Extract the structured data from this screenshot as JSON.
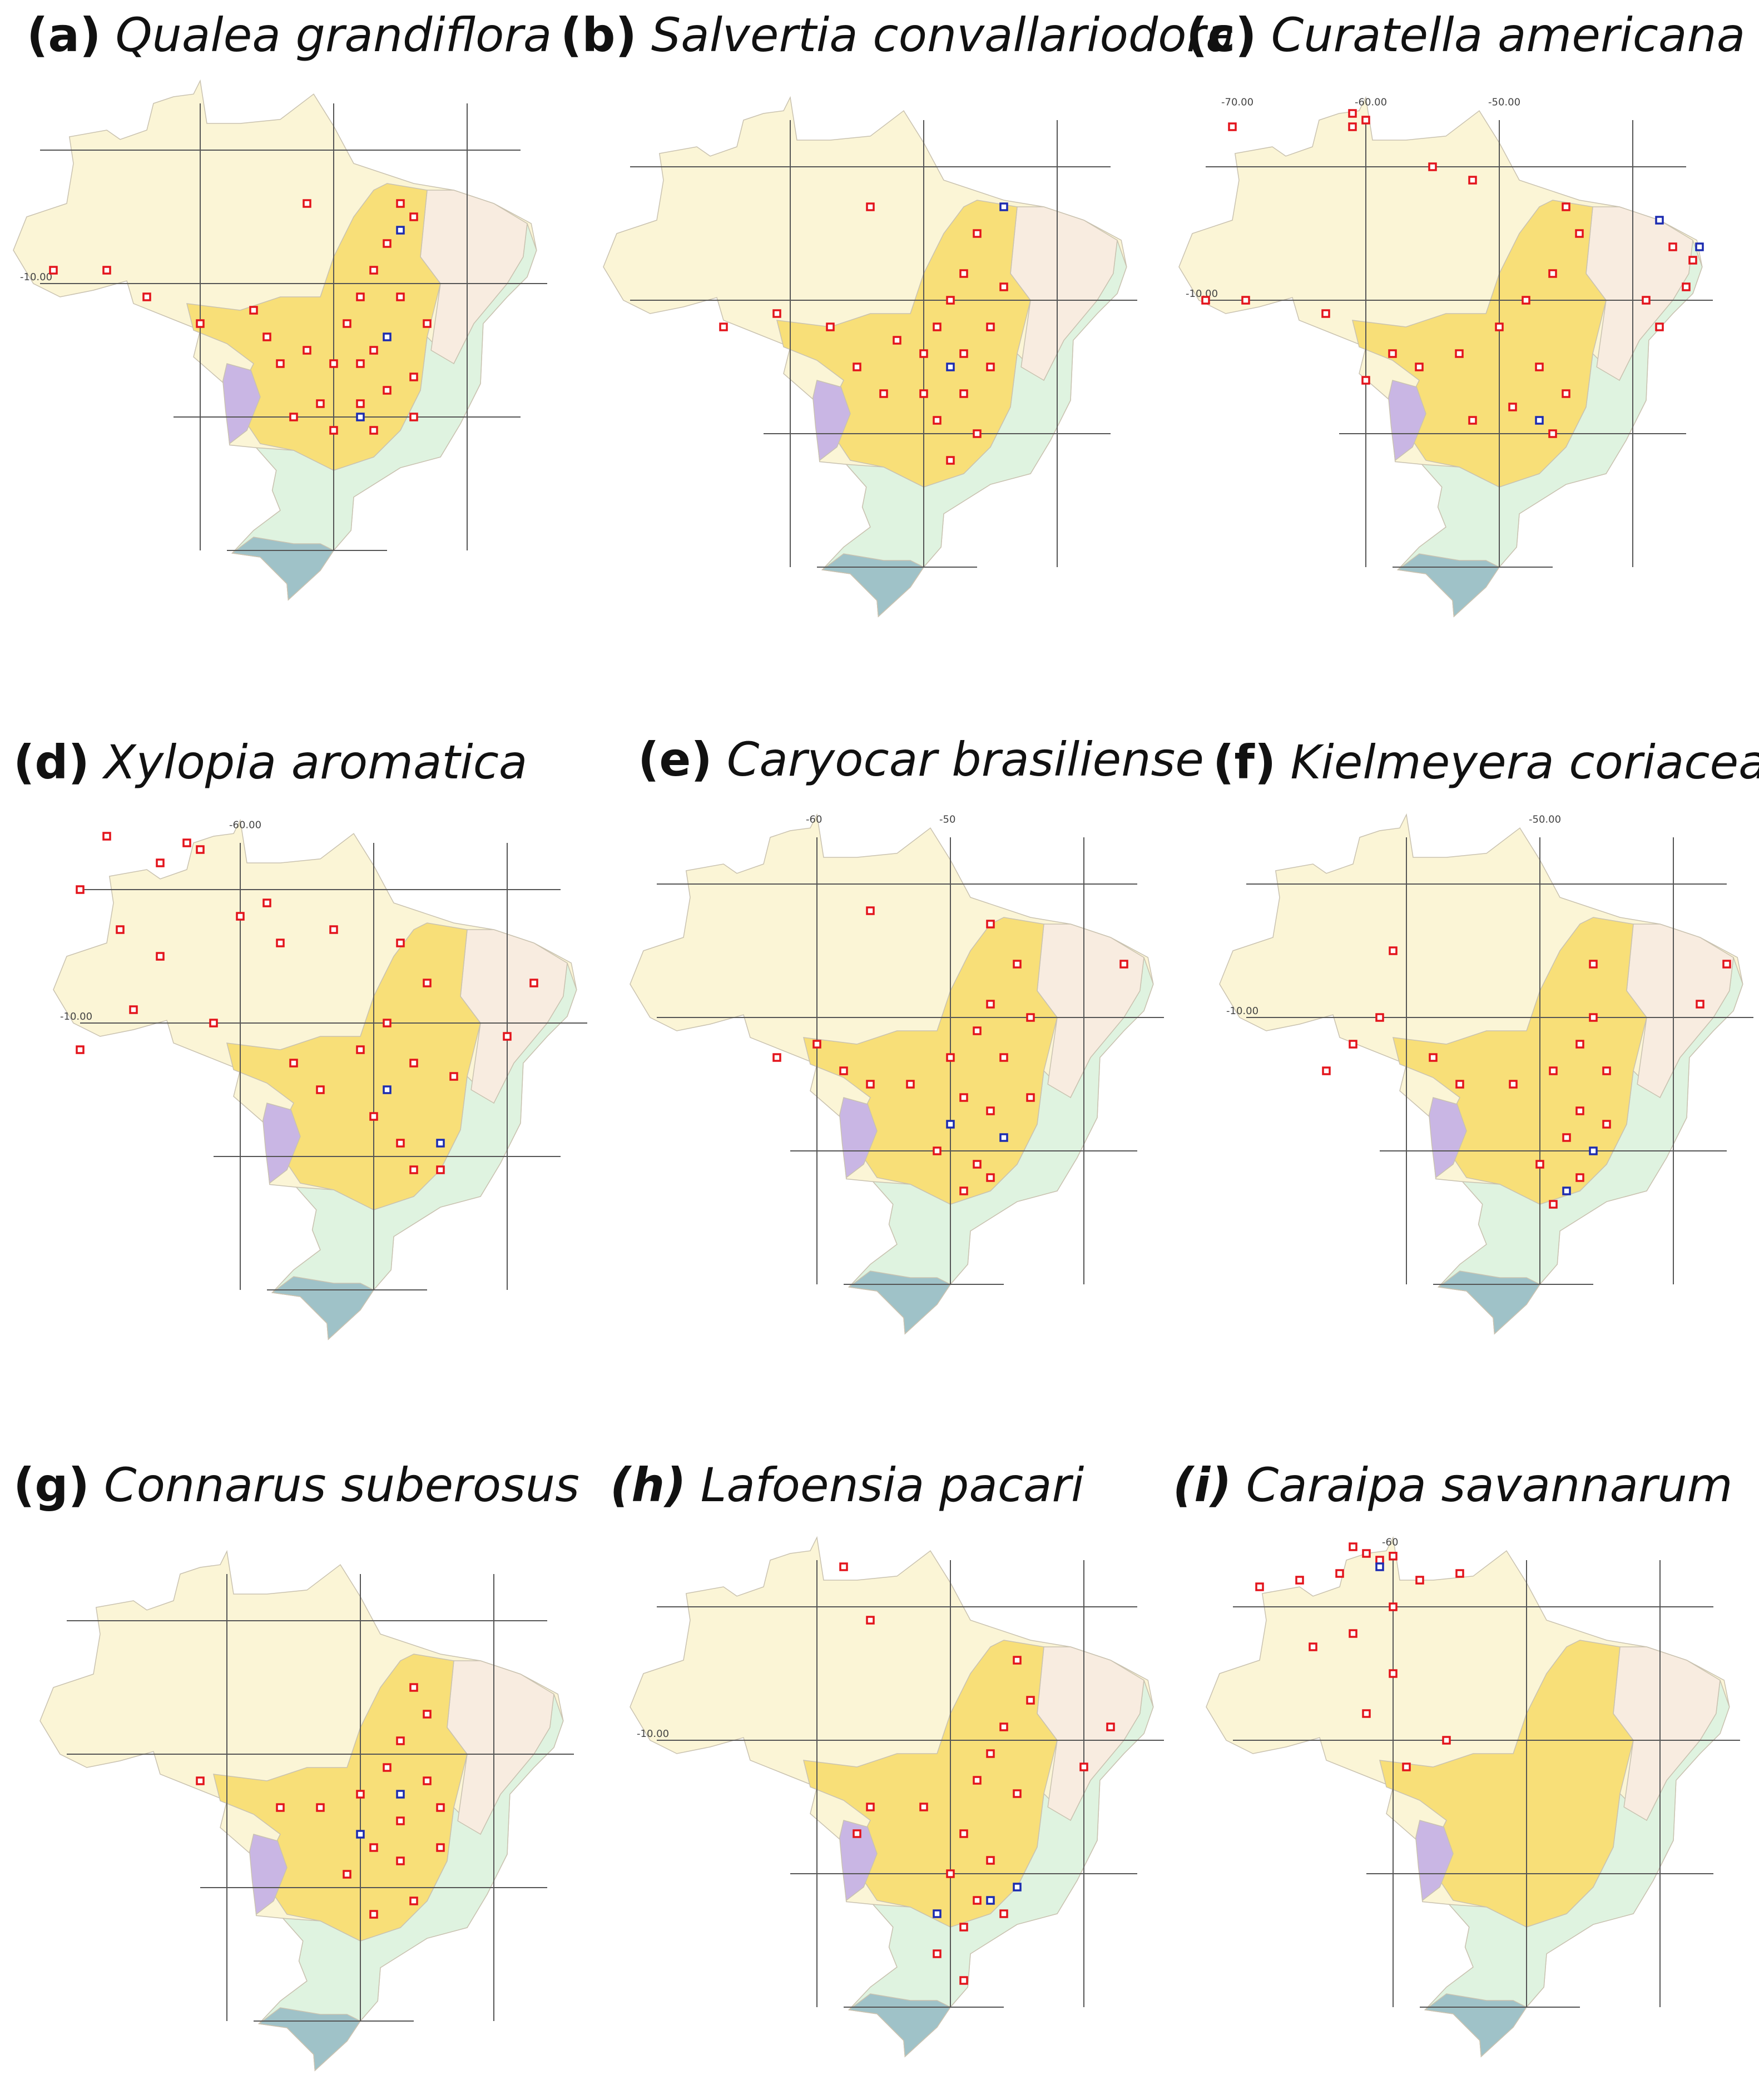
{
  "marker_color": "#e3141c",
  "alt_marker_color": "#1c2bb0",
  "panels": [
    {
      "label": "(a)",
      "species": "Qualea grandiflora",
      "grid_labels": [
        {
          "text": "-10.00",
          "axis": "lat"
        }
      ],
      "points": [
        [
          -45,
          -4
        ],
        [
          -44,
          -5
        ],
        [
          -46,
          -7
        ],
        [
          -47,
          -9
        ],
        [
          -48,
          -11
        ],
        [
          -49,
          -13
        ],
        [
          -47,
          -15
        ],
        [
          -48,
          -16
        ],
        [
          -50,
          -16
        ],
        [
          -52,
          -15
        ],
        [
          -54,
          -16
        ],
        [
          -55,
          -14
        ],
        [
          -51,
          -19
        ],
        [
          -48,
          -19
        ],
        [
          -46,
          -18
        ],
        [
          -44,
          -17
        ],
        [
          -47,
          -21
        ],
        [
          -50,
          -21
        ],
        [
          -53,
          -20
        ],
        [
          -56,
          -12
        ],
        [
          -60,
          -13
        ],
        [
          -64,
          -11
        ],
        [
          -67,
          -9
        ],
        [
          -71,
          -9
        ],
        [
          -52,
          -4
        ],
        [
          -45,
          -11
        ],
        [
          -43,
          -13
        ],
        [
          -44,
          -20
        ]
      ],
      "points_alt": [
        [
          -48,
          -20
        ],
        [
          -46,
          -14
        ],
        [
          -45,
          -6
        ]
      ]
    },
    {
      "label": "(b)",
      "species": "Salvertia convallariodora",
      "grid_labels": [],
      "points": [
        [
          -46,
          -5
        ],
        [
          -47,
          -8
        ],
        [
          -48,
          -10
        ],
        [
          -49,
          -12
        ],
        [
          -50,
          -14
        ],
        [
          -47,
          -14
        ],
        [
          -45,
          -12
        ],
        [
          -52,
          -13
        ],
        [
          -55,
          -15
        ],
        [
          -53,
          -17
        ],
        [
          -50,
          -17
        ],
        [
          -47,
          -17
        ],
        [
          -45,
          -15
        ],
        [
          -49,
          -19
        ],
        [
          -46,
          -20
        ],
        [
          -57,
          -12
        ],
        [
          -61,
          -11
        ],
        [
          -65,
          -12
        ],
        [
          -54,
          -3
        ],
        [
          -44,
          -9
        ],
        [
          -48,
          -22
        ]
      ],
      "points_alt": [
        [
          -48,
          -15
        ],
        [
          -44,
          -3
        ]
      ]
    },
    {
      "label": "(c)",
      "species": "Curatella americana",
      "grid_labels": [
        {
          "text": "-70.00",
          "axis": "lon"
        },
        {
          "text": "-60.00",
          "axis": "lon"
        },
        {
          "text": "-50.00",
          "axis": "lon"
        },
        {
          "text": "-10.00",
          "axis": "lat"
        }
      ],
      "points": [
        [
          -61,
          4
        ],
        [
          -60,
          3.5
        ],
        [
          -61,
          3
        ],
        [
          -70,
          3
        ],
        [
          -55,
          0
        ],
        [
          -52,
          -1
        ],
        [
          -45,
          -3
        ],
        [
          -44,
          -5
        ],
        [
          -37,
          -6
        ],
        [
          -35.5,
          -7
        ],
        [
          -36,
          -9
        ],
        [
          -38,
          -12
        ],
        [
          -39,
          -10
        ],
        [
          -46,
          -8
        ],
        [
          -48,
          -10
        ],
        [
          -50,
          -12
        ],
        [
          -53,
          -14
        ],
        [
          -56,
          -15
        ],
        [
          -58,
          -14
        ],
        [
          -47,
          -15
        ],
        [
          -45,
          -17
        ],
        [
          -49,
          -18
        ],
        [
          -52,
          -19
        ],
        [
          -46,
          -20
        ],
        [
          -63,
          -11
        ],
        [
          -69,
          -10
        ],
        [
          -72,
          -10
        ],
        [
          -60,
          -16
        ]
      ],
      "points_alt": [
        [
          -35,
          -6
        ],
        [
          -38,
          -4
        ],
        [
          -47,
          -19
        ]
      ]
    },
    {
      "label": "(d)",
      "species": "Xylopia aromatica",
      "grid_labels": [
        {
          "text": "-60.00",
          "axis": "lon"
        },
        {
          "text": "-10.00",
          "axis": "lat"
        }
      ],
      "points": [
        [
          -64,
          3.5
        ],
        [
          -63,
          3
        ],
        [
          -66,
          2
        ],
        [
          -70,
          4
        ],
        [
          -72,
          0
        ],
        [
          -69,
          -3
        ],
        [
          -66,
          -5
        ],
        [
          -60,
          -2
        ],
        [
          -58,
          -1
        ],
        [
          -57,
          -4
        ],
        [
          -53,
          -3
        ],
        [
          -48,
          -4
        ],
        [
          -46,
          -7
        ],
        [
          -49,
          -10
        ],
        [
          -51,
          -12
        ],
        [
          -47,
          -13
        ],
        [
          -44,
          -14
        ],
        [
          -54,
          -15
        ],
        [
          -56,
          -13
        ],
        [
          -50,
          -17
        ],
        [
          -48,
          -19
        ],
        [
          -47,
          -21
        ],
        [
          -45,
          -21
        ],
        [
          -40,
          -11
        ],
        [
          -38,
          -7
        ],
        [
          -62,
          -10
        ],
        [
          -68,
          -9
        ],
        [
          -72,
          -12
        ]
      ],
      "points_alt": [
        [
          -45,
          -19
        ],
        [
          -49,
          -15
        ]
      ]
    },
    {
      "label": "(e)",
      "species": "Caryocar brasiliense",
      "grid_labels": [
        {
          "text": "-60",
          "axis": "lon"
        },
        {
          "text": "-50",
          "axis": "lon"
        }
      ],
      "points": [
        [
          -56,
          -2
        ],
        [
          -47,
          -3
        ],
        [
          -45,
          -6
        ],
        [
          -47,
          -9
        ],
        [
          -48,
          -11
        ],
        [
          -46,
          -13
        ],
        [
          -50,
          -13
        ],
        [
          -53,
          -15
        ],
        [
          -56,
          -15
        ],
        [
          -58,
          -14
        ],
        [
          -49,
          -16
        ],
        [
          -47,
          -17
        ],
        [
          -44,
          -16
        ],
        [
          -51,
          -20
        ],
        [
          -48,
          -21
        ],
        [
          -47,
          -22
        ],
        [
          -49,
          -23
        ],
        [
          -60,
          -12
        ],
        [
          -63,
          -13
        ],
        [
          -37,
          -6
        ],
        [
          -44,
          -10
        ]
      ],
      "points_alt": [
        [
          -50,
          -18
        ],
        [
          -46,
          -19
        ]
      ]
    },
    {
      "label": "(f)",
      "species": "Kielmeyera coriacea",
      "grid_labels": [
        {
          "text": "-50.00",
          "axis": "lon"
        },
        {
          "text": "-10.00",
          "axis": "lat"
        }
      ],
      "points": [
        [
          -46,
          -6
        ],
        [
          -46,
          -10
        ],
        [
          -47,
          -12
        ],
        [
          -45,
          -14
        ],
        [
          -49,
          -14
        ],
        [
          -52,
          -15
        ],
        [
          -56,
          -15
        ],
        [
          -58,
          -13
        ],
        [
          -47,
          -17
        ],
        [
          -45,
          -18
        ],
        [
          -48,
          -19
        ],
        [
          -50,
          -21
        ],
        [
          -47,
          -22
        ],
        [
          -49,
          -24
        ],
        [
          -62,
          -10
        ],
        [
          -64,
          -12
        ],
        [
          -66,
          -14
        ],
        [
          -61,
          -5
        ],
        [
          -38,
          -9
        ],
        [
          -36,
          -6
        ]
      ],
      "points_alt": [
        [
          -46,
          -20
        ],
        [
          -48,
          -23
        ]
      ]
    },
    {
      "label": "(g)",
      "species": "Connarus suberosus",
      "grid_labels": [],
      "points": [
        [
          -46,
          -5
        ],
        [
          -45,
          -7
        ],
        [
          -47,
          -9
        ],
        [
          -48,
          -11
        ],
        [
          -45,
          -12
        ],
        [
          -50,
          -13
        ],
        [
          -53,
          -14
        ],
        [
          -56,
          -14
        ],
        [
          -47,
          -15
        ],
        [
          -44,
          -14
        ],
        [
          -49,
          -17
        ],
        [
          -47,
          -18
        ],
        [
          -51,
          -19
        ],
        [
          -46,
          -21
        ],
        [
          -49,
          -22
        ],
        [
          -62,
          -12
        ],
        [
          -44,
          -17
        ]
      ],
      "points_alt": [
        [
          -50,
          -16
        ],
        [
          -47,
          -13
        ]
      ]
    },
    {
      "label": "(h)",
      "species": "Lafoensia pacari",
      "grid_labels": [
        {
          "text": "-10.00",
          "axis": "lat"
        }
      ],
      "points": [
        [
          -58,
          3
        ],
        [
          -56,
          -1
        ],
        [
          -45,
          -4
        ],
        [
          -44,
          -7
        ],
        [
          -46,
          -9
        ],
        [
          -47,
          -11
        ],
        [
          -48,
          -13
        ],
        [
          -45,
          -14
        ],
        [
          -52,
          -15
        ],
        [
          -56,
          -15
        ],
        [
          -57,
          -17
        ],
        [
          -49,
          -17
        ],
        [
          -47,
          -19
        ],
        [
          -50,
          -20
        ],
        [
          -48,
          -22
        ],
        [
          -46,
          -23
        ],
        [
          -49,
          -24
        ],
        [
          -51,
          -26
        ],
        [
          -49,
          -28
        ],
        [
          -40,
          -12
        ],
        [
          -38,
          -9
        ]
      ],
      "points_alt": [
        [
          -47,
          -22
        ],
        [
          -45,
          -21
        ],
        [
          -51,
          -23
        ]
      ]
    },
    {
      "label": "(i)",
      "species": "Caraipa savannarum",
      "grid_labels": [
        {
          "text": "-60",
          "axis": "lon"
        }
      ],
      "points": [
        [
          -63,
          4.5
        ],
        [
          -62,
          4
        ],
        [
          -61,
          3.5
        ],
        [
          -60,
          3.8
        ],
        [
          -64,
          2.5
        ],
        [
          -67,
          2
        ],
        [
          -70,
          1.5
        ],
        [
          -58,
          2
        ],
        [
          -55,
          2.5
        ],
        [
          -60,
          0
        ],
        [
          -63,
          -2
        ],
        [
          -66,
          -3
        ],
        [
          -60,
          -5
        ],
        [
          -62,
          -8
        ],
        [
          -56,
          -10
        ],
        [
          -59,
          -12
        ]
      ],
      "points_alt": [
        [
          -61,
          3
        ]
      ]
    }
  ]
}
